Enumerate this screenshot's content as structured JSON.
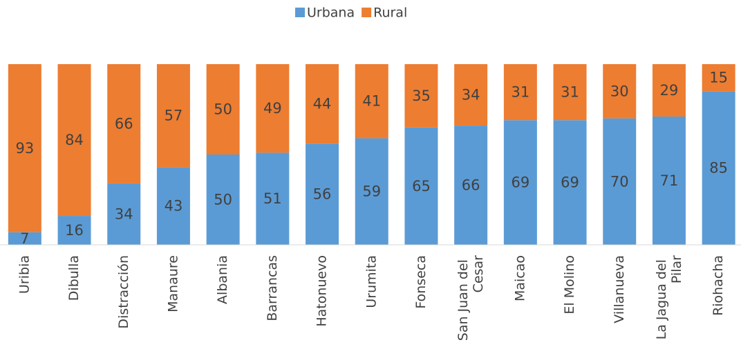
{
  "chart_data": {
    "type": "stacked_bar",
    "categories": [
      "Uribia",
      "Dibulla",
      "Distracción",
      "Manaure",
      "Albania",
      "Barrancas",
      "Hatonuevo",
      "Urumita",
      "Fonseca",
      "San Juan del Cesar",
      "Maicao",
      "El Molino",
      "Villanueva",
      "La Jagua del Pilar",
      "Riohacha"
    ],
    "series": [
      {
        "name": "Urbana",
        "color": "#5b9bd5",
        "values": [
          7,
          16,
          34,
          43,
          50,
          51,
          56,
          59,
          65,
          66,
          69,
          69,
          70,
          71,
          85
        ]
      },
      {
        "name": "Rural",
        "color": "#ed7d31",
        "values": [
          93,
          84,
          66,
          57,
          50,
          49,
          44,
          41,
          35,
          34,
          31,
          31,
          30,
          29,
          15
        ]
      }
    ],
    "ylim": [
      0,
      100
    ],
    "legend": "top"
  }
}
